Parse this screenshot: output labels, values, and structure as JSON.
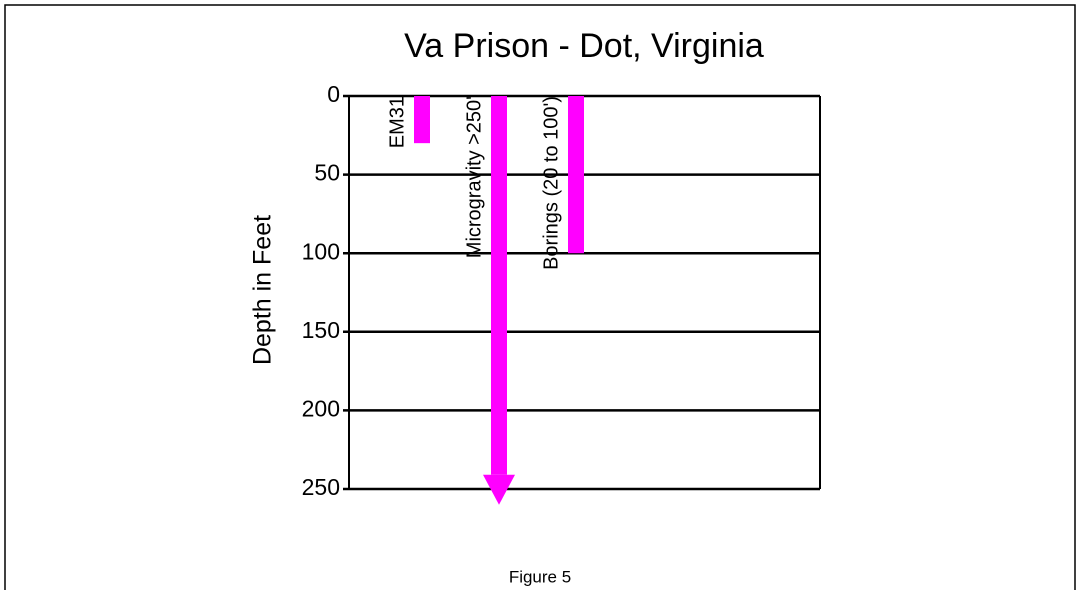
{
  "chart_data": {
    "type": "bar",
    "title": "Va Prison - Dot, Virginia",
    "y_label": "Depth in Feet",
    "caption": "Figure 5",
    "categories": [
      "EM31",
      "Microgravity >250'",
      "Borings (20 to 100')"
    ],
    "values": [
      30,
      260,
      100
    ],
    "arrow": [
      false,
      true,
      false
    ],
    "color": "#ff00ff",
    "ylim": [
      0,
      250
    ],
    "yticks": [
      0,
      50,
      100,
      150,
      200,
      250
    ],
    "y_inverted": true,
    "grid": true
  }
}
